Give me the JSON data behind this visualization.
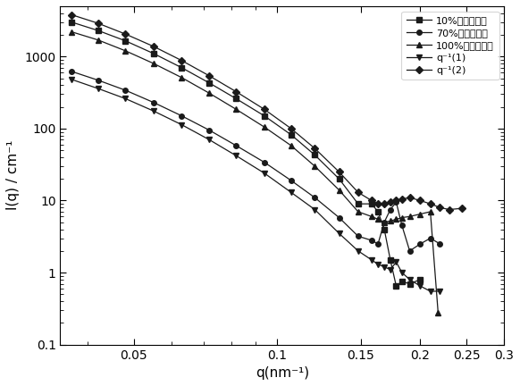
{
  "title": "",
  "xlabel": "q(nm⁻¹)",
  "ylabel": "I(q) / cm⁻¹",
  "xlim": [
    0.035,
    0.3
  ],
  "ylim": [
    0.1,
    5000
  ],
  "legend_labels": [
    "10%氯代环已烷",
    "70%氯代环已烷",
    "100%氯代环已烷",
    "q⁻¹(1)",
    "q⁻¹(2)"
  ],
  "series": {
    "s10": {
      "q": [
        0.037,
        0.042,
        0.048,
        0.055,
        0.063,
        0.072,
        0.082,
        0.094,
        0.107,
        0.12,
        0.135,
        0.148,
        0.158,
        0.163,
        0.168,
        0.173,
        0.178,
        0.183,
        0.19,
        0.2
      ],
      "I": [
        3000,
        2300,
        1650,
        1100,
        700,
        430,
        260,
        150,
        82,
        43,
        20,
        9,
        9,
        7,
        4,
        1.5,
        0.65,
        0.75,
        0.7,
        0.8
      ],
      "marker": "s",
      "color": "#1a1a1a"
    },
    "s70": {
      "q": [
        0.037,
        0.042,
        0.048,
        0.055,
        0.063,
        0.072,
        0.082,
        0.094,
        0.107,
        0.12,
        0.135,
        0.148,
        0.158,
        0.163,
        0.168,
        0.173,
        0.178,
        0.183,
        0.19,
        0.2,
        0.21,
        0.22
      ],
      "I": [
        620,
        470,
        340,
        230,
        150,
        95,
        58,
        34,
        19,
        11,
        5.8,
        3.2,
        2.8,
        2.5,
        5.0,
        7.5,
        9.5,
        4.5,
        2.0,
        2.5,
        3.0,
        2.5
      ],
      "marker": "o",
      "color": "#1a1a1a"
    },
    "s100": {
      "q": [
        0.037,
        0.042,
        0.048,
        0.055,
        0.063,
        0.072,
        0.082,
        0.094,
        0.107,
        0.12,
        0.135,
        0.148,
        0.158,
        0.163,
        0.168,
        0.173,
        0.178,
        0.183,
        0.19,
        0.2,
        0.21,
        0.218
      ],
      "I": [
        2200,
        1700,
        1200,
        800,
        510,
        310,
        185,
        105,
        58,
        30,
        14,
        7,
        6,
        5.5,
        5.0,
        5.2,
        5.5,
        5.8,
        6.0,
        6.5,
        7.0,
        0.28
      ],
      "marker": "^",
      "color": "#1a1a1a"
    },
    "q4_1": {
      "q": [
        0.037,
        0.042,
        0.048,
        0.055,
        0.063,
        0.072,
        0.082,
        0.094,
        0.107,
        0.12,
        0.135,
        0.148,
        0.158,
        0.163,
        0.168,
        0.173,
        0.178,
        0.183,
        0.19,
        0.2,
        0.21,
        0.22
      ],
      "I": [
        480,
        360,
        260,
        175,
        113,
        70,
        42,
        24,
        13,
        7.5,
        3.5,
        2.0,
        1.5,
        1.3,
        1.2,
        1.1,
        1.4,
        1.0,
        0.8,
        0.65,
        0.55,
        0.55
      ],
      "marker": "v",
      "color": "#1a1a1a"
    },
    "q4_2": {
      "q": [
        0.037,
        0.042,
        0.048,
        0.055,
        0.063,
        0.072,
        0.082,
        0.094,
        0.107,
        0.12,
        0.135,
        0.148,
        0.158,
        0.163,
        0.168,
        0.173,
        0.178,
        0.183,
        0.19,
        0.2,
        0.21,
        0.22,
        0.23,
        0.245
      ],
      "I": [
        3800,
        2900,
        2050,
        1380,
        880,
        540,
        325,
        185,
        100,
        53,
        25,
        13,
        10,
        9,
        9,
        9.5,
        10,
        10.5,
        11,
        10,
        9,
        8,
        7.5,
        7.8
      ],
      "marker": "D",
      "color": "#1a1a1a"
    }
  },
  "linewidth": 0.9,
  "markersize": 4,
  "background_color": "#ffffff"
}
